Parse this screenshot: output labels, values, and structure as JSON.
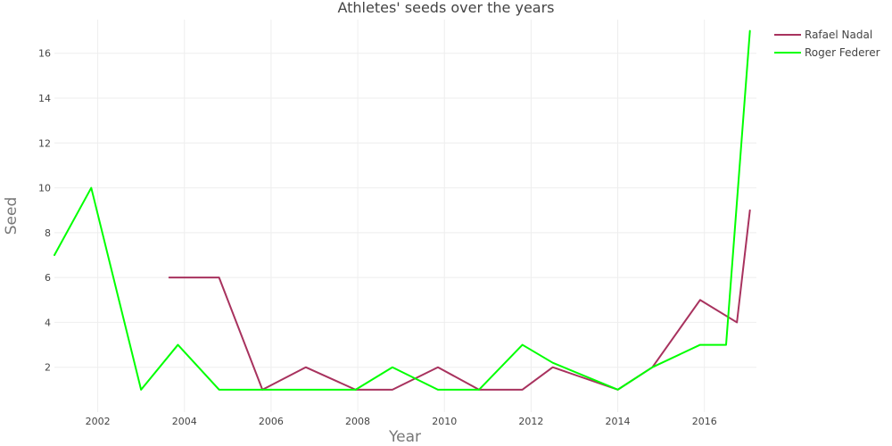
{
  "chart_data": {
    "type": "line",
    "title": "Athletes' seeds over the years",
    "xlabel": "Year",
    "ylabel": "Seed",
    "xlim": [
      2001,
      2017.2
    ],
    "ylim": [
      0,
      17.5
    ],
    "x_ticks": [
      2002,
      2004,
      2006,
      2008,
      2010,
      2012,
      2014,
      2016
    ],
    "y_ticks": [
      2,
      4,
      6,
      8,
      10,
      12,
      14,
      16
    ],
    "grid": true,
    "legend_position": "top-right",
    "series": [
      {
        "name": "Rafael Nadal",
        "color": "#a8325e",
        "x": [
          2003.65,
          2004.8,
          2005.8,
          2006.8,
          2007.95,
          2008.8,
          2009.85,
          2010.8,
          2011.8,
          2012.5,
          2014.0,
          2014.8,
          2015.9,
          2016.75,
          2017.05
        ],
        "y": [
          6,
          6,
          1,
          2,
          1,
          1,
          2,
          1,
          1,
          2,
          1,
          2,
          5,
          4,
          9
        ]
      },
      {
        "name": "Roger Federer",
        "color": "#00ff00",
        "x": [
          2001.0,
          2001.85,
          2003.0,
          2003.85,
          2004.8,
          2005.8,
          2006.8,
          2007.95,
          2008.8,
          2009.85,
          2010.8,
          2011.8,
          2012.5,
          2014.0,
          2014.8,
          2015.9,
          2016.5,
          2017.05
        ],
        "y": [
          7,
          10,
          1,
          3,
          1,
          1,
          1,
          1,
          2,
          1,
          1,
          3,
          2.2,
          1,
          2,
          3,
          3,
          17
        ]
      }
    ]
  }
}
